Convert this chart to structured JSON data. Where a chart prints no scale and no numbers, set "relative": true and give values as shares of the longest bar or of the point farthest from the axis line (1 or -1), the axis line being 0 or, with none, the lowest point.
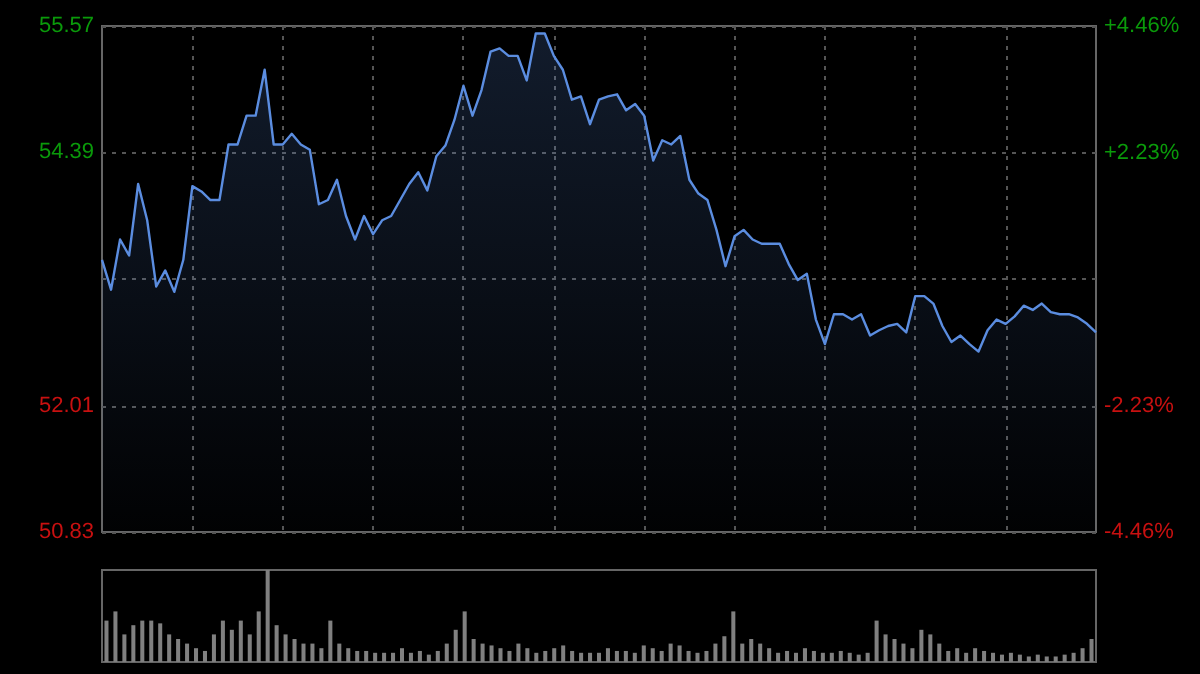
{
  "chart_data": [
    {
      "type": "area",
      "categories": [
        null,
        null,
        null,
        null,
        null,
        null,
        null,
        null,
        null,
        null,
        null,
        null,
        null,
        null,
        null,
        null,
        null,
        null,
        null,
        null,
        null,
        null,
        null,
        null,
        null,
        null,
        null,
        null,
        null,
        null,
        null,
        null,
        null,
        null,
        null,
        null,
        null,
        null,
        null,
        null,
        null,
        null,
        null,
        null,
        null,
        null,
        null,
        null,
        null,
        null,
        null,
        null,
        null,
        null,
        null,
        null,
        null,
        null,
        null,
        null,
        null,
        null,
        null,
        null,
        null,
        null,
        null,
        null,
        null,
        null,
        null,
        null,
        null,
        null,
        null,
        null,
        null,
        null,
        null,
        null,
        null,
        null,
        null,
        null,
        null,
        null,
        null,
        null,
        null,
        null,
        null,
        null,
        null,
        null,
        null,
        null,
        null,
        null,
        null,
        null,
        null,
        null,
        null,
        null,
        null,
        null,
        null,
        null,
        null,
        null,
        null
      ],
      "series": [
        {
          "color": "#5b8de0",
          "values": [
            53.38,
            53.1,
            53.57,
            53.42,
            54.09,
            53.75,
            53.13,
            53.28,
            53.08,
            53.38,
            54.07,
            54.02,
            53.94,
            53.94,
            54.46,
            54.46,
            54.73,
            54.73,
            55.16,
            54.46,
            54.46,
            54.56,
            54.46,
            54.41,
            53.9,
            53.94,
            54.13,
            53.79,
            53.57,
            53.79,
            53.62,
            53.75,
            53.79,
            53.94,
            54.09,
            54.2,
            54.03,
            54.35,
            54.45,
            54.69,
            55.01,
            54.73,
            54.97,
            55.33,
            55.36,
            55.29,
            55.29,
            55.06,
            55.5,
            55.5,
            55.29,
            55.16,
            54.88,
            54.91,
            54.65,
            54.88,
            54.91,
            54.93,
            54.78,
            54.84,
            54.73,
            54.31,
            54.5,
            54.46,
            54.54,
            54.13,
            54.0,
            53.94,
            53.66,
            53.32,
            53.6,
            53.66,
            53.57,
            53.53,
            53.53,
            53.53,
            53.34,
            53.19,
            53.25,
            52.82,
            52.59,
            52.87,
            52.87,
            52.82,
            52.87,
            52.67,
            52.72,
            52.76,
            52.78,
            52.7,
            53.04,
            53.04,
            52.97,
            52.76,
            52.61,
            52.67,
            52.59,
            52.52,
            52.72,
            52.82,
            52.78,
            52.85,
            52.95,
            52.91,
            52.97,
            52.89,
            52.87,
            52.87,
            52.84,
            52.78,
            52.7
          ]
        }
      ],
      "ylim": [
        50.83,
        55.57
      ],
      "yticks": [
        50.83,
        52.01,
        {
          "value": 53.2,
          "label": null
        },
        54.39,
        55.57
      ],
      "y2lim": [
        -4.46,
        4.46
      ],
      "y2ticks": [
        {
          "value": -4.46,
          "label": "-4.46%"
        },
        {
          "value": -2.23,
          "label": "-2.23%"
        },
        {
          "value": 2.23,
          "label": "+2.23%"
        },
        {
          "value": 4.46,
          "label": "+4.46%"
        }
      ],
      "grid": true,
      "tick_labels": "y"
    },
    {
      "type": "bar",
      "relative": true,
      "categories": [
        null,
        null,
        null,
        null,
        null,
        null,
        null,
        null,
        null,
        null,
        null,
        null,
        null,
        null,
        null,
        null,
        null,
        null,
        null,
        null,
        null,
        null,
        null,
        null,
        null,
        null,
        null,
        null,
        null,
        null,
        null,
        null,
        null,
        null,
        null,
        null,
        null,
        null,
        null,
        null,
        null,
        null,
        null,
        null,
        null,
        null,
        null,
        null,
        null,
        null,
        null,
        null,
        null,
        null,
        null,
        null,
        null,
        null,
        null,
        null,
        null,
        null,
        null,
        null,
        null,
        null,
        null,
        null,
        null,
        null,
        null,
        null,
        null,
        null,
        null,
        null,
        null,
        null,
        null,
        null,
        null,
        null,
        null,
        null,
        null,
        null,
        null,
        null,
        null,
        null,
        null,
        null,
        null,
        null,
        null,
        null,
        null,
        null,
        null,
        null,
        null,
        null,
        null,
        null,
        null,
        null,
        null,
        null,
        null,
        null,
        null
      ],
      "series": [
        {
          "color": "#808080",
          "values": [
            0.45,
            0.55,
            0.3,
            0.4,
            0.45,
            0.45,
            0.42,
            0.3,
            0.25,
            0.2,
            0.15,
            0.12,
            0.3,
            0.45,
            0.35,
            0.45,
            0.3,
            0.55,
            1,
            0.4,
            0.3,
            0.25,
            0.2,
            0.2,
            0.15,
            0.45,
            0.2,
            0.15,
            0.12,
            0.12,
            0.1,
            0.1,
            0.1,
            0.15,
            0.1,
            0.12,
            0.08,
            0.12,
            0.2,
            0.35,
            0.55,
            0.25,
            0.2,
            0.18,
            0.15,
            0.12,
            0.2,
            0.15,
            0.1,
            0.12,
            0.15,
            0.18,
            0.12,
            0.1,
            0.1,
            0.1,
            0.15,
            0.12,
            0.12,
            0.1,
            0.18,
            0.15,
            0.12,
            0.2,
            0.18,
            0.12,
            0.1,
            0.12,
            0.2,
            0.28,
            0.55,
            0.2,
            0.25,
            0.2,
            0.15,
            0.1,
            0.12,
            0.1,
            0.15,
            0.12,
            0.1,
            0.1,
            0.12,
            0.1,
            0.08,
            0.1,
            0.45,
            0.3,
            0.25,
            0.2,
            0.15,
            0.35,
            0.3,
            0.2,
            0.12,
            0.15,
            0.1,
            0.15,
            0.12,
            0.1,
            0.08,
            0.1,
            0.08,
            0.06,
            0.08,
            0.06,
            0.06,
            0.08,
            0.1,
            0.15,
            0.25
          ]
        }
      ],
      "tick_labels": false
    }
  ]
}
